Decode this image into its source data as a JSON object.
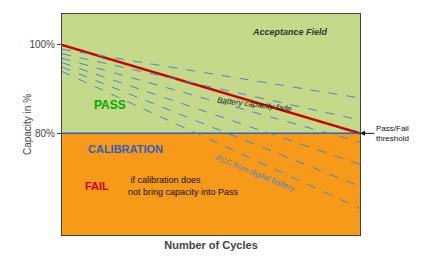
{
  "chart_data": {
    "type": "line",
    "xlabel": "Number of Cycles",
    "ylabel": "Capacity in %",
    "x": [
      0,
      10
    ],
    "xlim": [
      0,
      10
    ],
    "ylim": [
      57,
      107
    ],
    "yticks": [
      {
        "value": 100,
        "label": "100%"
      },
      {
        "value": 80,
        "label": "80%"
      }
    ],
    "grid": false,
    "tick_labels": "y",
    "series": [
      {
        "type": "area",
        "color": "#f79919",
        "values": [
          80,
          80
        ]
      },
      {
        "type": "area",
        "color": "#c5d98a",
        "values": [
          107,
          107
        ]
      },
      {
        "color": "#cc0000",
        "values": [
          100,
          80
        ]
      },
      {
        "color": "#3060c0",
        "values": [
          80,
          80
        ]
      },
      {
        "color": "#4488cc",
        "line_style": "dashed",
        "values": [
          99,
          88
        ]
      },
      {
        "color": "#4488cc",
        "line_style": "dashed",
        "values": [
          98,
          83
        ]
      },
      {
        "color": "#4488cc",
        "line_style": "dashed",
        "values": [
          97,
          78
        ]
      },
      {
        "color": "#4488cc",
        "line_style": "dashed",
        "values": [
          96,
          73
        ]
      },
      {
        "color": "#4488cc",
        "line_style": "dashed",
        "values": [
          95,
          68
        ]
      },
      {
        "color": "#4488cc",
        "line_style": "dashed",
        "values": [
          94,
          63
        ]
      }
    ],
    "annotations": [
      {
        "text": "Acceptance Field",
        "x": 9.0,
        "y": 103,
        "color": "#333333"
      },
      {
        "text": "Battery capacity fade",
        "x": 7.8,
        "y": 86.5,
        "color": "#222222"
      },
      {
        "text": "PASS",
        "x": 1.0,
        "y": 86.5,
        "color": "#00aa00"
      },
      {
        "text": "CALIBRATION",
        "x": 0.8,
        "y": 76.5,
        "color": "#3060c0"
      },
      {
        "text": "FAIL",
        "x": 0.7,
        "y": 68.0,
        "color": "#cc0000"
      },
      {
        "text": " if calibration does\nnot bring capacity into Pass",
        "x": 2.15,
        "y": 68.0,
        "color": "#111111"
      },
      {
        "text": "FCC from digital battery",
        "x": 6.5,
        "y": 71,
        "color": "#4488cc"
      },
      {
        "text": "Pass/Fail\nthreshold",
        "x": 10,
        "y": 80,
        "color": "#111111",
        "arrow": true
      }
    ]
  }
}
